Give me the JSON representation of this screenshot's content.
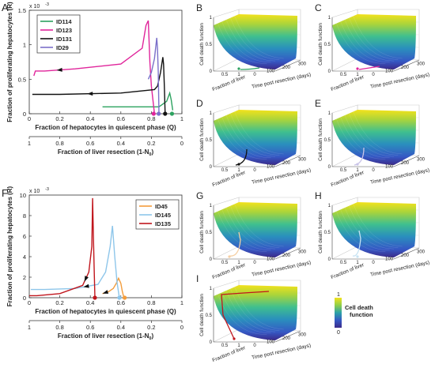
{
  "colorbar": {
    "label_line1": "Cell death",
    "label_line2": "function",
    "max_label": "1",
    "min_label": "0"
  },
  "chart_data": [
    {
      "panel": "A",
      "type": "line",
      "ylabel": "Fraction of proliferating hepatocytes (R)",
      "xlabel": "Fraction of hepatocytes in quiescent phase (Q)",
      "x2label": "Fraction of liver resection (1-N",
      "x2label_sub": "0",
      "x2label_end": ")",
      "y_exponent": "x 10",
      "y_exponent_power": "-3",
      "xlim": [
        0,
        1
      ],
      "ylim": [
        0,
        1.5
      ],
      "xticks": [
        "0",
        "0.2",
        "0.4",
        "0.6",
        "0.8",
        "1"
      ],
      "yticks": [
        "0",
        "0.5",
        "1",
        "1.5"
      ],
      "x2ticks": [
        "1",
        "0.8",
        "0.6",
        "0.4",
        "0.2",
        "0"
      ],
      "legend": "top-left",
      "series": [
        {
          "name": "ID114",
          "color": "#2ca25f",
          "x": [
            0.94,
            0.93,
            0.92,
            0.9,
            0.85,
            0.7,
            0.55,
            0.48
          ],
          "y": [
            0.05,
            0.2,
            0.3,
            0.18,
            0.1,
            0.1,
            0.1,
            0.1
          ]
        },
        {
          "name": "ID123",
          "color": "#e0259b",
          "x": [
            0.82,
            0.8,
            0.79,
            0.78,
            0.765,
            0.74,
            0.6,
            0.3,
            0.1,
            0.04,
            0.03
          ],
          "y": [
            0.0,
            0.4,
            0.75,
            1.35,
            1.28,
            0.95,
            0.72,
            0.65,
            0.62,
            0.62,
            0.55
          ]
        },
        {
          "name": "ID131",
          "color": "#111111",
          "x": [
            0.89,
            0.885,
            0.88,
            0.875,
            0.86,
            0.84,
            0.82,
            0.6,
            0.2,
            0.02
          ],
          "y": [
            0.0,
            0.4,
            0.72,
            0.82,
            0.6,
            0.4,
            0.35,
            0.3,
            0.28,
            0.28
          ]
        },
        {
          "name": "ID29",
          "color": "#7b6fc9",
          "x": [
            0.85,
            0.845,
            0.84,
            0.835,
            0.82,
            0.8,
            0.78
          ],
          "y": [
            0.0,
            0.6,
            0.95,
            1.1,
            0.8,
            0.6,
            0.5
          ]
        }
      ],
      "endpoints": [
        {
          "series": "ID123",
          "x": 0.815,
          "y": 0.0
        },
        {
          "series": "ID29",
          "x": 0.848,
          "y": 0.0
        },
        {
          "series": "ID131",
          "x": 0.89,
          "y": 0.0
        },
        {
          "series": "ID114",
          "x": 0.935,
          "y": 0.0
        }
      ]
    },
    {
      "panel": "F",
      "type": "line",
      "ylabel": "Fraction of proliferating hepatocytes (R)",
      "xlabel": "Fraction of hepatocytes in quiescent phase (Q)",
      "x2label": "Fraction of liver resection (1-N",
      "x2label_sub": "0",
      "x2label_end": ")",
      "y_exponent": "x 10",
      "y_exponent_power": "-3",
      "xlim": [
        0,
        1
      ],
      "ylim": [
        0,
        10
      ],
      "xticks": [
        "0",
        "0.2",
        "0.4",
        "0.6",
        "0.8",
        "1"
      ],
      "yticks": [
        "0",
        "2",
        "4",
        "6",
        "8",
        "10"
      ],
      "x2ticks": [
        "1",
        "0.8",
        "0.6",
        "0.4",
        "0.2",
        "0"
      ],
      "legend": "top-right",
      "series": [
        {
          "name": "ID45",
          "color": "#f39c3b",
          "x": [
            0.62,
            0.61,
            0.6,
            0.585,
            0.57,
            0.55,
            0.52,
            0.48
          ],
          "y": [
            0.0,
            0.6,
            1.4,
            1.9,
            1.4,
            0.9,
            0.6,
            0.4
          ]
        },
        {
          "name": "ID145",
          "color": "#8ec6ea",
          "x": [
            0.59,
            0.575,
            0.56,
            0.545,
            0.53,
            0.5,
            0.45,
            0.3,
            0.1,
            0.01
          ],
          "y": [
            0.0,
            1.5,
            4.0,
            7.0,
            5.0,
            2.5,
            1.3,
            0.9,
            0.8,
            0.8
          ]
        },
        {
          "name": "ID135",
          "color": "#c0161d",
          "x": [
            0.43,
            0.425,
            0.42,
            0.415,
            0.41,
            0.39,
            0.35,
            0.2,
            0.05,
            0.0
          ],
          "y": [
            0.0,
            3.0,
            6.0,
            9.7,
            5.0,
            2.5,
            1.2,
            0.4,
            0.2,
            0.2
          ]
        }
      ],
      "endpoints": [
        {
          "series": "ID135",
          "x": 0.43,
          "y": 0.0
        },
        {
          "series": "ID145",
          "x": 0.59,
          "y": 0.0
        },
        {
          "series": "ID45",
          "x": 0.625,
          "y": 0.0
        }
      ]
    },
    {
      "type": "surface",
      "panels": [
        "B",
        "C",
        "D",
        "E",
        "G",
        "H",
        "I"
      ],
      "zlabel": "Cell death function",
      "xlabel": "Fraction of liver",
      "ylabel": "Time post resection (days)",
      "zticks": [
        "0",
        "0.5",
        "1"
      ],
      "xticks": [
        "0.5",
        "1"
      ],
      "yticks": [
        "0",
        "100",
        "200",
        "300"
      ],
      "curve_colors": {
        "B": "#2ca25f",
        "C": "#e0259b",
        "D": "#111111",
        "E": "#c9c4e8",
        "G": "#f5cfa4",
        "H": "#c7e3f3",
        "I": "#c0161d"
      }
    }
  ]
}
